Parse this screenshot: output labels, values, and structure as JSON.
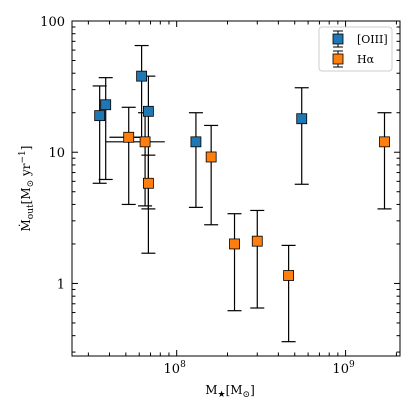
{
  "chart_data": {
    "type": "scatter",
    "xscale": "log",
    "yscale": "log",
    "xlim": [
      24000000,
      2100000000
    ],
    "ylim": [
      0.28,
      100
    ],
    "xticks": [
      {
        "value": 100000000,
        "base": "10",
        "exp": "8"
      },
      {
        "value": 1000000000,
        "base": "10",
        "exp": "9"
      }
    ],
    "yticks": [
      {
        "value": 1,
        "label": "1"
      },
      {
        "value": 10,
        "label": "10"
      },
      {
        "value": 100,
        "label": "100"
      }
    ],
    "xlabel": {
      "main": "M",
      "star": "★",
      "unit": "[M",
      "sun": "⊙",
      "close": "]"
    },
    "ylabel": {
      "main": "Ṁ",
      "sub": "out",
      "unit": "[M",
      "sun": "⊙",
      "rate": " yr",
      "exp": "−1",
      "close": "]"
    },
    "grid": false,
    "legend_position": "upper right",
    "series": [
      {
        "name": "[OIII]",
        "color": "#1f77b4",
        "points": [
          {
            "x": 35000000,
            "y": 19,
            "ylo": 5.8,
            "yhi": 32
          },
          {
            "x": 38000000,
            "y": 23,
            "ylo": 6.2,
            "yhi": 37
          },
          {
            "x": 62000000,
            "y": 38,
            "ylo": 13,
            "yhi": 65
          },
          {
            "x": 68000000,
            "y": 20.5,
            "ylo": 3.7,
            "yhi": 38
          },
          {
            "x": 130000000,
            "y": 12,
            "ylo": 3.8,
            "yhi": 20
          },
          {
            "x": 550000000,
            "y": 18,
            "ylo": 5.7,
            "yhi": 31
          }
        ]
      },
      {
        "name": "Hα",
        "color": "#ff7f0e",
        "points": [
          {
            "x": 52000000,
            "y": 13,
            "ylo": 4,
            "yhi": 22,
            "xlo": 40000000,
            "xhi": 66000000
          },
          {
            "x": 65000000,
            "y": 12,
            "ylo": 3.9,
            "yhi": 20,
            "xlo": 38000000,
            "xhi": 85000000
          },
          {
            "x": 68000000,
            "y": 5.8,
            "ylo": 1.7,
            "yhi": 9.5
          },
          {
            "x": 160000000,
            "y": 9.2,
            "ylo": 2.8,
            "yhi": 16
          },
          {
            "x": 220000000,
            "y": 2,
            "ylo": 0.62,
            "yhi": 3.4
          },
          {
            "x": 300000000,
            "y": 2.1,
            "ylo": 0.65,
            "yhi": 3.6
          },
          {
            "x": 460000000,
            "y": 1.15,
            "ylo": 0.36,
            "yhi": 1.95
          },
          {
            "x": 1700000000,
            "y": 12,
            "ylo": 3.7,
            "yhi": 20
          }
        ]
      }
    ]
  }
}
